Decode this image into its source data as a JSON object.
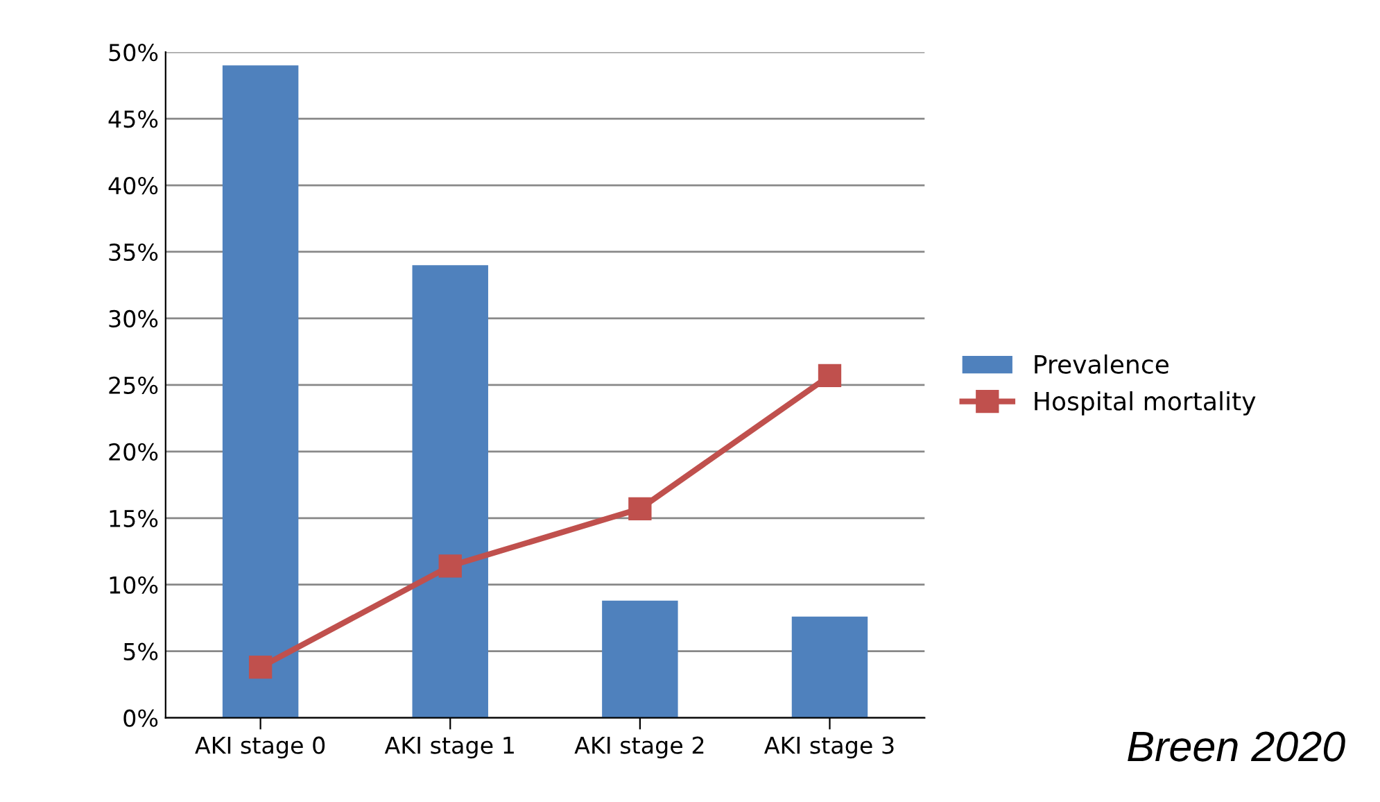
{
  "chart_data": {
    "type": "bar",
    "categories": [
      "AKI stage 0",
      "AKI stage 1",
      "AKI stage 2",
      "AKI stage 3"
    ],
    "series": [
      {
        "name": "Prevalence",
        "color": "#4f81bd",
        "values": [
          49,
          34,
          8.8,
          7.6
        ]
      },
      {
        "name": "Hospital mortality",
        "type": "line",
        "color": "#c0504d",
        "marker": "square",
        "values": [
          3.8,
          11.4,
          15.7,
          25.7
        ]
      }
    ],
    "ylim": [
      0,
      50
    ],
    "yticks": [
      {
        "value": 0,
        "label": "0%"
      },
      {
        "value": 5,
        "label": "5%"
      },
      {
        "value": 10,
        "label": "10%"
      },
      {
        "value": 15,
        "label": "15%"
      },
      {
        "value": 20,
        "label": "20%"
      },
      {
        "value": 25,
        "label": "25%"
      },
      {
        "value": 30,
        "label": "30%"
      },
      {
        "value": 35,
        "label": "35%"
      },
      {
        "value": 40,
        "label": "40%"
      },
      {
        "value": 45,
        "label": "45%"
      },
      {
        "value": 50,
        "label": "50%"
      }
    ],
    "grid": "y",
    "legend": "right",
    "annotations": [
      "Breen 2020"
    ]
  }
}
